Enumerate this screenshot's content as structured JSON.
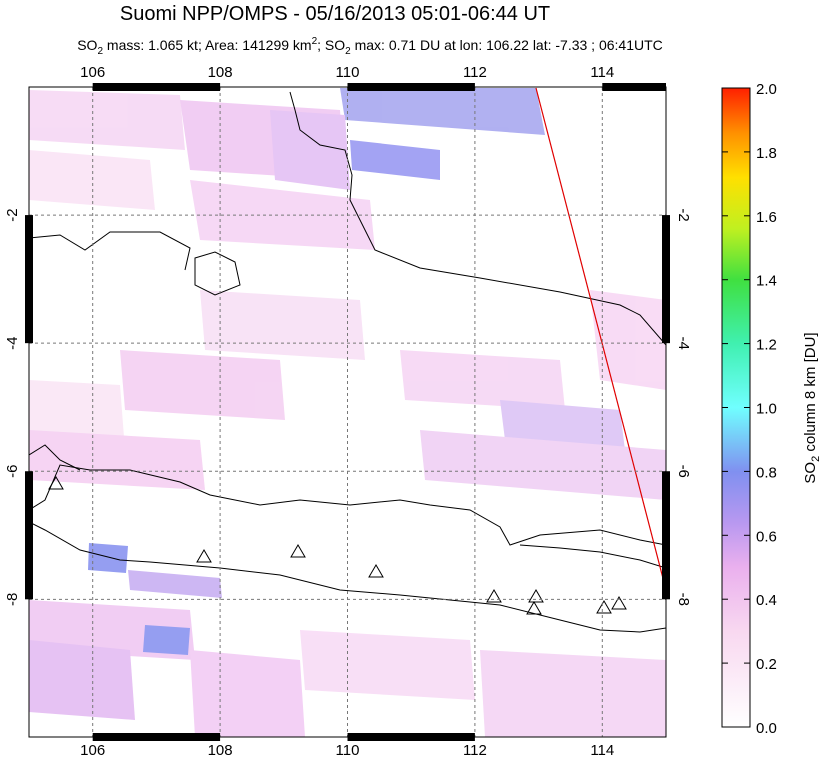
{
  "title": "Suomi NPP/OMPS - 05/16/2013 05:01-06:44 UT",
  "subtitle": [
    "SO",
    "2",
    " mass: 1.065 kt; Area: 141299 km",
    "2",
    "; SO",
    "2",
    " max: 0.71 DU at lon: 106.22 lat: -7.33 ; 06:41UTC"
  ],
  "map": {
    "xlim": [
      105,
      115
    ],
    "ylim": [
      -10.15,
      0
    ],
    "xticks": [
      106,
      108,
      110,
      112,
      114
    ],
    "yticks": [
      -2,
      -4,
      -6,
      -8
    ]
  },
  "colorbar": {
    "label": [
      "SO",
      "2",
      " column 8 km [DU]"
    ],
    "lim": [
      0,
      2
    ],
    "ticks": [
      {
        "value": 0,
        "label": "0.0"
      },
      0.2,
      0.4,
      0.6,
      0.8,
      {
        "value": 1,
        "label": "1.0"
      },
      1.2,
      1.4,
      1.6,
      1.8,
      {
        "value": 2,
        "label": "2.0"
      }
    ]
  }
}
